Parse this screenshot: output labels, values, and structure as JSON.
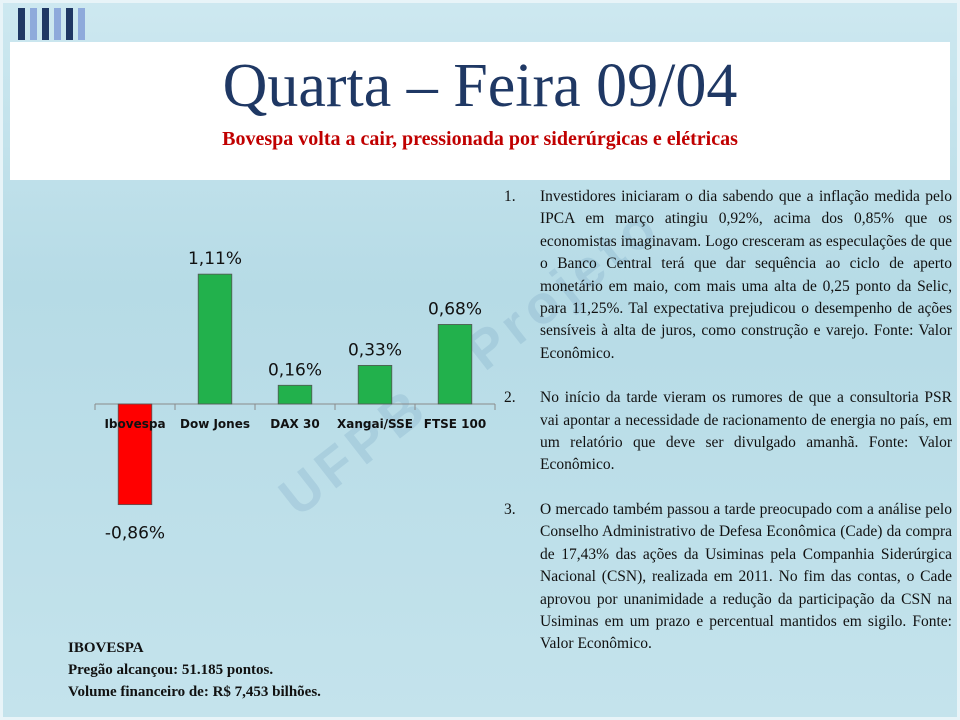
{
  "title": "Quarta – Feira 09/04",
  "subtitle": "Bovespa volta a cair, pressionada por siderúrgicas e elétricas",
  "watermark": "UFPB - Projeto",
  "chart_data": {
    "type": "bar",
    "categories": [
      "Ibovespa",
      "Dow Jones",
      "DAX 30",
      "Xangai/SSE",
      "FTSE 100"
    ],
    "values": [
      -0.86,
      1.11,
      0.16,
      0.33,
      0.68
    ],
    "data_labels": [
      "-0,86%",
      "1,11%",
      "0,16%",
      "0,33%",
      "0,68%"
    ],
    "ylim": [
      -1.2,
      1.4
    ],
    "colors": {
      "positive": "#22b14c",
      "negative": "#ff0000"
    },
    "grid": false,
    "legend": "none"
  },
  "notes": {
    "line1": "IBOVESPA",
    "line2": "Pregão alcançou: 51.185 pontos.",
    "line3": "Volume financeiro de: R$ 7,453 bilhões."
  },
  "items": [
    {
      "num": "1.",
      "text": "Investidores iniciaram o dia sabendo que a inflação medida pelo IPCA em março atingiu 0,92%, acima dos 0,85% que os economistas imaginavam. Logo cresceram as especulações de que o Banco Central terá que dar sequência ao ciclo de aperto monetário em maio, com mais uma alta de 0,25 ponto da Selic, para 11,25%. Tal expectativa prejudicou o desempenho de ações sensíveis à alta de juros, como construção e varejo. Fonte: Valor Econômico."
    },
    {
      "num": "2.",
      "text": "No início da tarde vieram os rumores de que a consultoria PSR vai apontar a necessidade de racionamento de energia no país, em um relatório que deve ser divulgado amanhã. Fonte: Valor Econômico."
    },
    {
      "num": "3.",
      "text": "O mercado também passou a tarde preocupado com a análise pelo Conselho Administrativo de Defesa Econômica (Cade) da compra de 17,43% das ações da Usiminas pela Companhia Siderúrgica Nacional (CSN), realizada em 2011. No fim das contas, o Cade aprovou por unanimidade a redução da participação da CSN na Usiminas em um prazo e percentual mantidos em sigilo. Fonte: Valor Econômico."
    }
  ],
  "stripe_colors": [
    "#1f3864",
    "#8eaadb",
    "#1f3864",
    "#8eaadb",
    "#1f3864",
    "#8eaadb"
  ]
}
